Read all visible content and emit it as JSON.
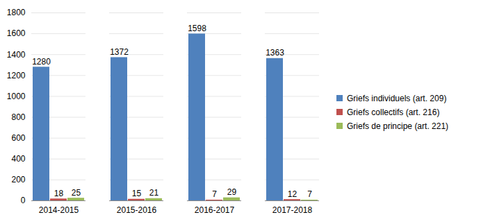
{
  "chart_data": {
    "type": "bar",
    "categories": [
      "2014-2015",
      "2015-2016",
      "2016-2017",
      "2017-2018"
    ],
    "series": [
      {
        "name": "Griefs individuels (art. 209)",
        "color": "#4f81bd",
        "values": [
          1280,
          1372,
          1598,
          1363
        ]
      },
      {
        "name": "Griefs collectifs (art. 216)",
        "color": "#c0504d",
        "values": [
          18,
          15,
          7,
          12
        ]
      },
      {
        "name": "Griefs de principe (art. 221)",
        "color": "#9bbb59",
        "values": [
          25,
          21,
          29,
          7
        ]
      }
    ],
    "ylim": [
      0,
      1800
    ],
    "yticks": [
      0,
      200,
      400,
      600,
      800,
      1000,
      1200,
      1400,
      1600,
      1800
    ],
    "grid": true,
    "legend": "right",
    "data_labels": true
  }
}
